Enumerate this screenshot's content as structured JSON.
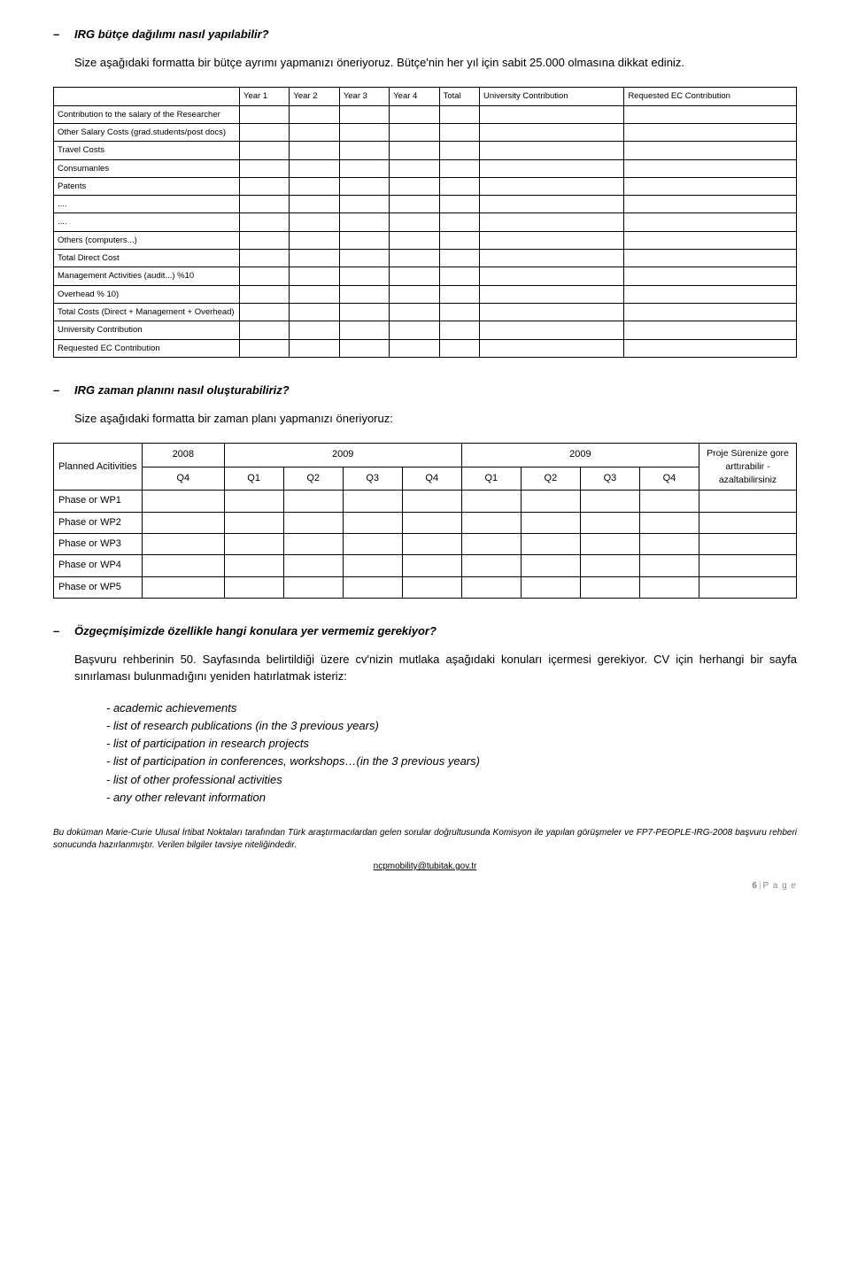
{
  "q1": {
    "title": "IRG bütçe dağılımı nasıl yapılabilir?",
    "para": "Size aşağıdaki formatta bir bütçe ayrımı yapmanızı öneriyoruz. Bütçe'nin her yıl için sabit 25.000 olmasına dikkat ediniz."
  },
  "budget": {
    "headers": [
      "Year 1",
      "Year 2",
      "Year 3",
      "Year 4",
      "Total",
      "University Contribution",
      "Requested EC Contribution"
    ],
    "rows": [
      "Contribution to the salary of the Researcher",
      "Other Salary Costs (grad.students/post docs)",
      "Travel Costs",
      "Consumanles",
      "Patents",
      "....",
      "....",
      "Others (computers...)",
      "Total Direct Cost",
      "Management Activities (audit...) %10",
      "Overhead % 10)",
      "Total Costs (Direct + Management + Overhead)",
      "University Contribution",
      "Requested EC Contribution"
    ]
  },
  "q2": {
    "title": "IRG zaman planını nasıl oluşturabiliriz?",
    "para": "Size aşağıdaki formatta bir zaman planı yapmanızı öneriyoruz:"
  },
  "timeplan": {
    "col_activities": "Planned Acitivities",
    "years": [
      "2008",
      "2009",
      "2009"
    ],
    "note": "Proje Sürenize gore arttırabilir - azaltabilirsiniz",
    "quarters": [
      "Q4",
      "Q1",
      "Q2",
      "Q3",
      "Q4",
      "Q1",
      "Q2",
      "Q3",
      "Q4"
    ],
    "phases": [
      "Phase or WP1",
      "Phase or WP2",
      "Phase or WP3",
      "Phase or WP4",
      "Phase or WP5"
    ]
  },
  "q3": {
    "title": "Özgeçmişimizde özellikle hangi konulara yer vermemiz gerekiyor?",
    "para": "Başvuru rehberinin 50. Sayfasında belirtildiği üzere cv'nizin mutlaka aşağıdaki konuları içermesi gerekiyor. CV için herhangi bir sayfa sınırlaması bulunmadığını yeniden hatırlatmak isteriz:",
    "items": [
      "- academic achievements",
      "- list of research publications (in the 3 previous years)",
      "- list of participation in research projects",
      "- list of participation in conferences, workshops…(in the 3 previous years)",
      "- list of other professional activities",
      "- any other relevant information"
    ]
  },
  "footer": {
    "note": "Bu doküman Marie-Curie Ulusal İrtibat Noktaları tarafından Türk araştırmacılardan gelen sorular doğrultusunda Komisyon ile yapılan görüşmeler ve FP7-PEOPLE-IRG-2008 başvuru rehberi sonucunda hazırlanmıştır. Verilen bilgiler tavsiye niteliğindedir.",
    "link": "ncpmobility@tubitak.gov.tr",
    "page_num": "6",
    "page_label": "P a g e"
  }
}
